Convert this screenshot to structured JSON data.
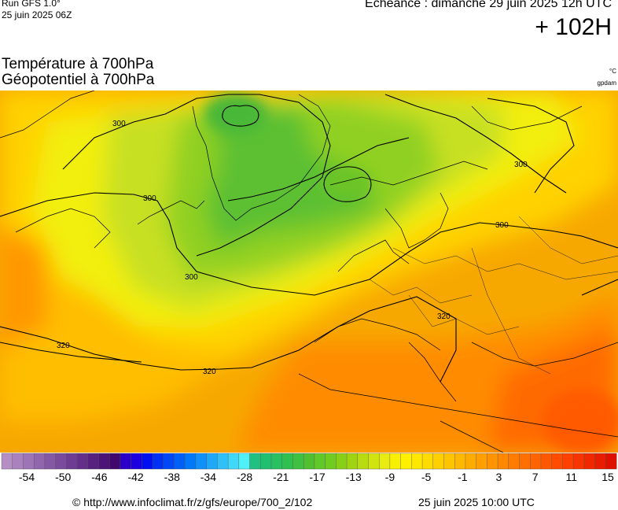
{
  "header": {
    "run_line1": "Run GFS 1.0°",
    "run_line2": "25 juin 2025 06Z",
    "echeance": "Echéance : dimanche 29 juin 2025 12h UTC",
    "horizon": "+ 102H"
  },
  "titles": {
    "line1": "Température à 700hPa",
    "line2": "Géopotentiel à 700hPa"
  },
  "units": {
    "temperature": "°C",
    "geopotential": "gpdam"
  },
  "contours": {
    "labels": [
      "300",
      "300",
      "300",
      "300",
      "300",
      "320",
      "320",
      "320"
    ]
  },
  "legend": {
    "tick_labels": [
      "-54",
      "-50",
      "-46",
      "-42",
      "-38",
      "-34",
      "-28",
      "-21",
      "-17",
      "-13",
      "-9",
      "-5",
      "-1",
      "3",
      "7",
      "11",
      "15"
    ],
    "colors": [
      "#b58fc4",
      "#a982bd",
      "#9d74b5",
      "#9166ad",
      "#8558a4",
      "#7a4b9c",
      "#6e3d93",
      "#632f8a",
      "#57217f",
      "#4c1476",
      "#40076d",
      "#2a00c8",
      "#1c00e0",
      "#0010f0",
      "#0030f4",
      "#0048f5",
      "#0060f6",
      "#0078f7",
      "#1090f8",
      "#20a8f8",
      "#30c0f8",
      "#40d8f8",
      "#50f0f8",
      "#20c080",
      "#20c070",
      "#28c060",
      "#30c050",
      "#40c040",
      "#50c030",
      "#60c828",
      "#70cc20",
      "#88d018",
      "#a0d410",
      "#b8dc10",
      "#d0e410",
      "#e8ec10",
      "#f8f000",
      "#fff000",
      "#ffe800",
      "#ffdc00",
      "#ffd000",
      "#ffc400",
      "#ffb800",
      "#ffac00",
      "#ffa000",
      "#ff9400",
      "#ff8800",
      "#ff7c00",
      "#ff7000",
      "#ff6400",
      "#ff5800",
      "#ff4c00",
      "#ff4000",
      "#f83400",
      "#f02800",
      "#e81c00",
      "#e01000"
    ]
  },
  "footer": {
    "url": "© http://www.infoclimat.fr/z/gfs/europe/700_2/102",
    "timestamp": "25 juin 2025 10:00 UTC"
  }
}
